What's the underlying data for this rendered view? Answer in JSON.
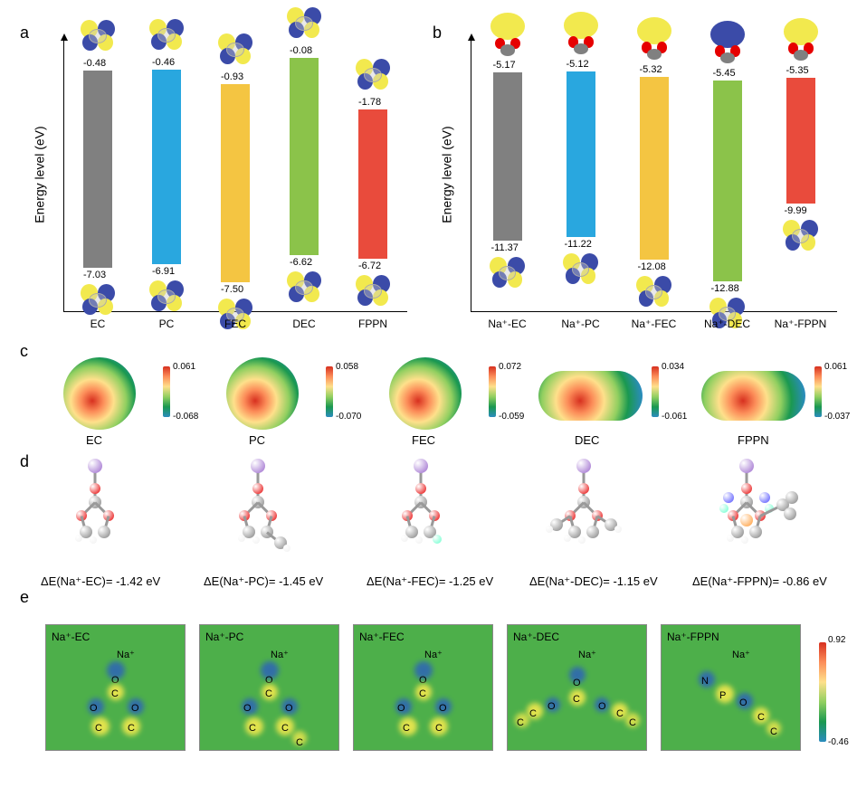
{
  "colors": {
    "bar": {
      "EC": "#808080",
      "PC": "#29a7df",
      "FEC": "#f4c542",
      "DEC": "#8bc34a",
      "FPPN": "#e94b3c"
    },
    "orbital": {
      "pos": "#f2e94e",
      "neg": "#3b4ba8"
    },
    "atoms": {
      "C": "#808080",
      "O": "#e60000",
      "H": "#f0f0f0",
      "F": "#66ffcc",
      "Na": "#9966cc",
      "N": "#4d4dff",
      "P": "#ff9933"
    },
    "slice_bg": "#4daf4a",
    "spot_pos": "#f2e94e",
    "spot_neg": "#2b5fbf"
  },
  "panel_a": {
    "label": "a",
    "y_label": "Energy level (eV)",
    "y_range": [
      -8.5,
      0.5
    ],
    "bars": [
      {
        "name": "EC",
        "lumo": -0.48,
        "homo": -7.03,
        "color_key": "EC"
      },
      {
        "name": "PC",
        "lumo": -0.46,
        "homo": -6.91,
        "color_key": "PC"
      },
      {
        "name": "FEC",
        "lumo": -0.93,
        "homo": -7.5,
        "color_key": "FEC"
      },
      {
        "name": "DEC",
        "lumo": -0.08,
        "homo": -6.62,
        "color_key": "DEC"
      },
      {
        "name": "FPPN",
        "lumo": -1.78,
        "homo": -6.72,
        "color_key": "FPPN"
      }
    ]
  },
  "panel_b": {
    "label": "b",
    "y_label": "Energy level (eV)",
    "y_range": [
      -14.0,
      -4.0
    ],
    "bars": [
      {
        "name": "Na+-EC",
        "lumo": -5.17,
        "homo": -11.37,
        "color_key": "EC"
      },
      {
        "name": "Na+-PC",
        "lumo": -5.12,
        "homo": -11.22,
        "color_key": "PC"
      },
      {
        "name": "Na+-FEC",
        "lumo": -5.32,
        "homo": -12.08,
        "color_key": "FEC"
      },
      {
        "name": "Na+-DEC",
        "lumo": -5.45,
        "homo": -12.88,
        "color_key": "DEC"
      },
      {
        "name": "Na+-FPPN",
        "lumo": -5.35,
        "homo": -9.99,
        "color_key": "FPPN"
      }
    ]
  },
  "panel_c": {
    "label": "c",
    "items": [
      {
        "name": "EC",
        "max": 0.061,
        "min": -0.068
      },
      {
        "name": "PC",
        "max": 0.058,
        "min": -0.07
      },
      {
        "name": "FEC",
        "max": 0.072,
        "min": -0.059
      },
      {
        "name": "DEC",
        "max": 0.034,
        "min": -0.061
      },
      {
        "name": "FPPN",
        "max": 0.061,
        "min": -0.037
      }
    ]
  },
  "panel_d": {
    "label": "d",
    "items": [
      {
        "name": "EC",
        "energy_label": "ΔE(Na+-EC)= -1.42 eV"
      },
      {
        "name": "PC",
        "energy_label": "ΔE(Na+-PC)= -1.45 eV"
      },
      {
        "name": "FEC",
        "energy_label": "ΔE(Na+-FEC)= -1.25 eV"
      },
      {
        "name": "DEC",
        "energy_label": "ΔE(Na+-DEC)= -1.15 eV"
      },
      {
        "name": "FPPN",
        "energy_label": "ΔE(Na+-FPPN)= -0.86 eV"
      }
    ]
  },
  "panel_e": {
    "label": "e",
    "colorbar": {
      "max": 0.92,
      "min": -0.46
    },
    "items": [
      {
        "name": "Na+-EC"
      },
      {
        "name": "Na+-PC"
      },
      {
        "name": "Na+-FEC"
      },
      {
        "name": "Na+-DEC"
      },
      {
        "name": "Na+-FPPN"
      }
    ]
  }
}
